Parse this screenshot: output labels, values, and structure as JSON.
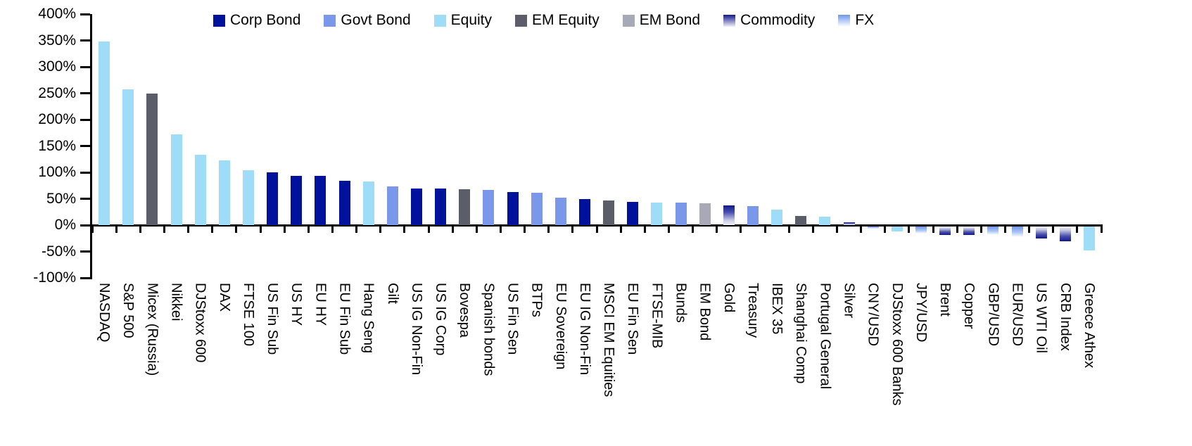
{
  "chart_data": {
    "type": "bar",
    "title": "",
    "xlabel": "",
    "ylabel": "",
    "ylim": [
      -100,
      400
    ],
    "ytick_step": 50,
    "ytick_suffix": "%",
    "grid": false,
    "legend_position": "top",
    "legend": [
      {
        "label": "Corp Bond",
        "group": "Corp Bond"
      },
      {
        "label": "Govt Bond",
        "group": "Govt Bond"
      },
      {
        "label": "Equity",
        "group": "Equity"
      },
      {
        "label": "EM Equity",
        "group": "EM Equity"
      },
      {
        "label": "EM Bond",
        "group": "EM Bond"
      },
      {
        "label": "Commodity",
        "group": "Commodity"
      },
      {
        "label": "FX",
        "group": "FX"
      }
    ],
    "groups": {
      "Corp Bond": {
        "fill": "solid",
        "color": "#00129B"
      },
      "Govt Bond": {
        "fill": "solid",
        "color": "#7A97EA"
      },
      "Equity": {
        "fill": "solid",
        "color": "#9EDCF8"
      },
      "EM Equity": {
        "fill": "solid",
        "color": "#5B5D68"
      },
      "EM Bond": {
        "fill": "solid",
        "color": "#A7AAB6"
      },
      "Commodity": {
        "fill": "gradient-tip",
        "color": "#11188A",
        "color2": "#F0F0F8"
      },
      "FX": {
        "fill": "gradient-down",
        "color": "#6E97EE",
        "color2": "#FFFFFF"
      }
    },
    "bars": [
      {
        "category": "NASDAQ",
        "value": 348,
        "group": "Equity"
      },
      {
        "category": "S&P 500",
        "value": 257,
        "group": "Equity"
      },
      {
        "category": "Micex (Russia)",
        "value": 250,
        "group": "EM Equity"
      },
      {
        "category": "Nikkei",
        "value": 172,
        "group": "Equity"
      },
      {
        "category": "DJStoxx 600",
        "value": 133,
        "group": "Equity"
      },
      {
        "category": "DAX",
        "value": 123,
        "group": "Equity"
      },
      {
        "category": "FTSE 100",
        "value": 104,
        "group": "Equity"
      },
      {
        "category": "US Fin Sub",
        "value": 100,
        "group": "Corp Bond"
      },
      {
        "category": "US HY",
        "value": 94,
        "group": "Corp Bond"
      },
      {
        "category": "EU HY",
        "value": 93,
        "group": "Corp Bond"
      },
      {
        "category": "EU Fin Sub",
        "value": 84,
        "group": "Corp Bond"
      },
      {
        "category": "Hang Seng",
        "value": 83,
        "group": "Equity"
      },
      {
        "category": "Gilt",
        "value": 74,
        "group": "Govt Bond"
      },
      {
        "category": "US IG Non-Fin",
        "value": 70,
        "group": "Corp Bond"
      },
      {
        "category": "US IG Corp",
        "value": 69,
        "group": "Corp Bond"
      },
      {
        "category": "Bovespa",
        "value": 68,
        "group": "EM Equity"
      },
      {
        "category": "Spanish bonds",
        "value": 67,
        "group": "Govt Bond"
      },
      {
        "category": "US Fin Sen",
        "value": 63,
        "group": "Corp Bond"
      },
      {
        "category": "BTPs",
        "value": 62,
        "group": "Govt Bond"
      },
      {
        "category": "EU Sovereign",
        "value": 52,
        "group": "Govt Bond"
      },
      {
        "category": "EU IG Non-Fin",
        "value": 49,
        "group": "Corp Bond"
      },
      {
        "category": "MSCI EM Equities",
        "value": 47,
        "group": "EM Equity"
      },
      {
        "category": "EU Fin Sen",
        "value": 44,
        "group": "Corp Bond"
      },
      {
        "category": "FTSE-MIB",
        "value": 43,
        "group": "Equity"
      },
      {
        "category": "Bunds",
        "value": 43,
        "group": "Govt Bond"
      },
      {
        "category": "EM Bond",
        "value": 41,
        "group": "EM Bond"
      },
      {
        "category": "Gold",
        "value": 37,
        "group": "Commodity"
      },
      {
        "category": "Treasury",
        "value": 36,
        "group": "Govt Bond"
      },
      {
        "category": "IBEX 35",
        "value": 30,
        "group": "Equity"
      },
      {
        "category": "Shanghai Comp",
        "value": 17,
        "group": "EM Equity"
      },
      {
        "category": "Portugal General",
        "value": 16,
        "group": "Equity"
      },
      {
        "category": "Silver",
        "value": 5,
        "group": "Commodity"
      },
      {
        "category": "CNY/USD",
        "value": -6,
        "group": "FX"
      },
      {
        "category": "DJStoxx 600 Banks",
        "value": -12,
        "group": "Equity"
      },
      {
        "category": "JPY/USD",
        "value": -16,
        "group": "FX"
      },
      {
        "category": "Brent",
        "value": -19,
        "group": "Commodity"
      },
      {
        "category": "Copper",
        "value": -19,
        "group": "Commodity"
      },
      {
        "category": "GBP/USD",
        "value": -19,
        "group": "FX"
      },
      {
        "category": "EUR/USD",
        "value": -22,
        "group": "FX"
      },
      {
        "category": "US WTI Oil",
        "value": -25,
        "group": "Commodity"
      },
      {
        "category": "CRB Index",
        "value": -31,
        "group": "Commodity"
      },
      {
        "category": "Greece Athex",
        "value": -48,
        "group": "Equity"
      }
    ]
  }
}
